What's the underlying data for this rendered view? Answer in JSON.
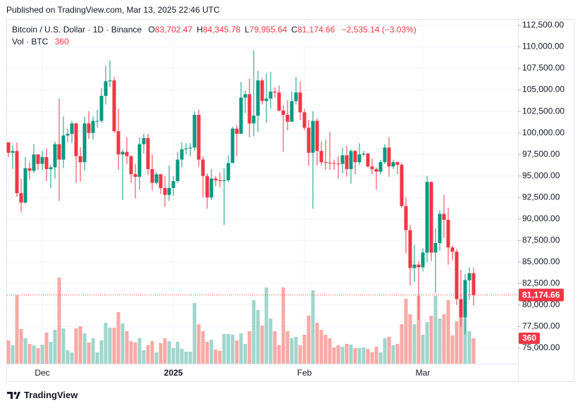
{
  "published": "Published on TradingView.com, Mar 13, 2025 22:46 UTC",
  "brand": "TradingView",
  "header": {
    "symbol": "Bitcoin / U.S. Dollar · 1D · Binance",
    "ohlc": [
      {
        "key": "O",
        "value": "83,702.47"
      },
      {
        "key": "H",
        "value": "84,345.78"
      },
      {
        "key": "L",
        "value": "79,955.64"
      },
      {
        "key": "C",
        "value": "81,174.66"
      }
    ],
    "change": "−2,535.14 (−3.03%)",
    "volume_title": "Vol · BTC",
    "volume_value": "360"
  },
  "chart_data": {
    "type": "candlestick",
    "up_color": "#089981",
    "down_color": "#f23645",
    "volume_up_color": "#9fd6cc",
    "volume_down_color": "#f8a9a6",
    "grid": true,
    "last_price_label": "81,174.66",
    "last_volume_label": "360",
    "categories": [
      null,
      null,
      null,
      null,
      null,
      null,
      null,
      null,
      "Dec",
      null,
      null,
      null,
      null,
      null,
      null,
      null,
      null,
      null,
      null,
      null,
      null,
      null,
      null,
      null,
      null,
      null,
      null,
      null,
      null,
      null,
      null,
      null,
      null,
      null,
      null,
      null,
      null,
      null,
      null,
      "2025",
      null,
      null,
      null,
      null,
      null,
      null,
      null,
      null,
      null,
      null,
      null,
      null,
      null,
      null,
      null,
      null,
      null,
      null,
      null,
      null,
      null,
      null,
      null,
      null,
      null,
      null,
      null,
      null,
      null,
      null,
      "Feb",
      null,
      null,
      null,
      null,
      null,
      null,
      null,
      null,
      null,
      null,
      null,
      null,
      null,
      null,
      null,
      null,
      null,
      null,
      null,
      null,
      null,
      null,
      null,
      null,
      null,
      null,
      null,
      "Mar",
      null,
      null,
      null,
      null,
      null,
      null,
      null,
      null,
      null,
      null,
      null,
      null
    ],
    "open": [
      98900,
      97700,
      97900,
      93000,
      91900,
      95900,
      95600,
      97500,
      96400,
      97200,
      95800,
      96000,
      98700,
      96900,
      99700,
      99900,
      101100,
      97300,
      96600,
      101100,
      100000,
      101400,
      101400,
      104300,
      106000,
      106100,
      100200,
      97500,
      97800,
      97300,
      95200,
      94900,
      98700,
      99400,
      95800,
      94200,
      95200,
      93600,
      92800,
      93600,
      94400,
      96900,
      98100,
      98200,
      98300,
      102100,
      96900,
      95000,
      92500,
      94700,
      94500,
      94400,
      94500,
      96500,
      100500,
      99900,
      104100,
      104500,
      101100,
      102000,
      106100,
      103700,
      104000,
      104800,
      104700,
      102600,
      102100,
      101300,
      103700,
      104700,
      102400,
      100600,
      97700,
      101400,
      97900,
      96600,
      96550,
      96500,
      96450,
      96400,
      97400,
      95800,
      97900,
      96600,
      97500,
      97600,
      96100,
      95800,
      95500,
      96600,
      98300,
      96100,
      96600,
      96300,
      91500,
      88700,
      84300,
      84700,
      84400,
      86100,
      94300,
      86100,
      87200,
      90600,
      89900,
      86700,
      86200,
      80700,
      78600,
      82900,
      83702.47
    ],
    "high": [
      98900,
      98600,
      98900,
      94700,
      97200,
      96600,
      98700,
      97500,
      97900,
      98200,
      96300,
      99000,
      104000,
      101900,
      100500,
      101400,
      101200,
      98300,
      101900,
      102500,
      101900,
      102700,
      105200,
      107800,
      108400,
      106500,
      102800,
      98100,
      99500,
      97400,
      96400,
      99500,
      99900,
      99900,
      97500,
      95500,
      95200,
      95000,
      96200,
      95000,
      97800,
      98900,
      98800,
      98800,
      102500,
      102700,
      97300,
      95300,
      95800,
      95000,
      95400,
      95900,
      97400,
      100700,
      100900,
      105900,
      104900,
      106300,
      109600,
      107200,
      106400,
      106900,
      107100,
      105300,
      105500,
      103200,
      103800,
      104800,
      106500,
      106000,
      102800,
      101500,
      102500,
      101700,
      99000,
      99200,
      100100,
      96900,
      97300,
      98300,
      98500,
      98100,
      98000,
      98800,
      97900,
      97700,
      97000,
      96000,
      96900,
      98700,
      99500,
      96900,
      96700,
      96500,
      92500,
      89300,
      87000,
      85100,
      86600,
      95000,
      94400,
      88900,
      91000,
      92800,
      91300,
      86900,
      86500,
      84100,
      83600,
      84400,
      84345.78
    ],
    "low": [
      97200,
      95800,
      92600,
      90800,
      91800,
      94600,
      95300,
      95700,
      95700,
      94400,
      93600,
      94700,
      92100,
      95900,
      98900,
      98800,
      94200,
      94300,
      95600,
      99300,
      99200,
      100600,
      101200,
      103300,
      105300,
      100000,
      95700,
      92200,
      96400,
      94200,
      92400,
      93400,
      97600,
      95100,
      93300,
      94000,
      92900,
      91400,
      92100,
      92700,
      94200,
      96000,
      97500,
      97300,
      97900,
      96100,
      92500,
      91200,
      92200,
      93800,
      93700,
      89300,
      94300,
      96500,
      97300,
      99900,
      102300,
      99500,
      99600,
      100100,
      103300,
      101200,
      102800,
      104100,
      102500,
      97800,
      100300,
      101300,
      103300,
      101500,
      100300,
      96200,
      91200,
      96200,
      96200,
      95700,
      95700,
      95700,
      94700,
      95300,
      94900,
      94100,
      95200,
      96300,
      97300,
      96000,
      95200,
      93400,
      95200,
      96400,
      94900,
      95800,
      95200,
      91300,
      86000,
      82300,
      82700,
      78300,
      83900,
      85000,
      85100,
      81400,
      86300,
      87800,
      84700,
      85200,
      80000,
      77500,
      76600,
      80600,
      79955.64
    ],
    "close": [
      97700,
      97900,
      93000,
      91900,
      95900,
      95600,
      97500,
      96400,
      97200,
      95800,
      96000,
      98700,
      96900,
      99700,
      99900,
      101100,
      97300,
      96600,
      101100,
      100000,
      101400,
      101400,
      104300,
      106000,
      106100,
      100200,
      97500,
      97800,
      97300,
      95200,
      94900,
      98700,
      99400,
      95800,
      94200,
      95200,
      93600,
      92800,
      93600,
      94400,
      96900,
      98100,
      98200,
      98300,
      102100,
      96900,
      95000,
      92500,
      94700,
      94500,
      94400,
      94500,
      96500,
      100500,
      99900,
      104100,
      104500,
      101100,
      102000,
      106100,
      103700,
      104000,
      104800,
      104700,
      102600,
      102100,
      101300,
      103700,
      104700,
      102400,
      100600,
      97700,
      101400,
      97900,
      96600,
      96550,
      96500,
      96450,
      96400,
      97400,
      95800,
      97900,
      96600,
      97500,
      97600,
      96100,
      95800,
      95500,
      96600,
      98300,
      96100,
      96600,
      96300,
      91500,
      88700,
      84300,
      84700,
      84400,
      86100,
      94300,
      86100,
      87200,
      90600,
      89900,
      86700,
      86200,
      80700,
      78600,
      82900,
      83700,
      81174.66
    ],
    "volume": [
      330,
      260,
      970,
      490,
      360,
      280,
      260,
      220,
      270,
      440,
      310,
      480,
      1220,
      500,
      190,
      160,
      500,
      530,
      430,
      300,
      360,
      160,
      330,
      580,
      510,
      510,
      730,
      570,
      460,
      320,
      300,
      360,
      190,
      260,
      320,
      160,
      290,
      360,
      320,
      220,
      310,
      210,
      170,
      170,
      860,
      560,
      460,
      310,
      340,
      200,
      180,
      420,
      420,
      410,
      330,
      430,
      280,
      460,
      900,
      760,
      540,
      1080,
      640,
      460,
      260,
      1080,
      460,
      360,
      380,
      260,
      410,
      680,
      1040,
      580,
      480,
      410,
      360,
      230,
      260,
      240,
      280,
      270,
      220,
      220,
      230,
      210,
      160,
      240,
      160,
      360,
      380,
      260,
      280,
      560,
      920,
      700,
      560,
      960,
      410,
      590,
      680,
      960,
      640,
      700,
      900,
      400,
      600,
      880,
      860,
      460,
      360
    ],
    "ylim": [
      73200,
      113150
    ],
    "yticks": [
      {
        "value": 75000,
        "label": "75,000.00"
      },
      {
        "value": 77500,
        "label": "77,500.00"
      },
      {
        "value": 80000,
        "label": "80,000.00"
      },
      {
        "value": 82500,
        "label": "82,500.00"
      },
      {
        "value": 85000,
        "label": "85,000.00"
      },
      {
        "value": 87500,
        "label": "87,500.00"
      },
      {
        "value": 90000,
        "label": "90,000.00"
      },
      {
        "value": 92500,
        "label": "92,500.00"
      },
      {
        "value": 95000,
        "label": "95,000.00"
      },
      {
        "value": 97500,
        "label": "97,500.00"
      },
      {
        "value": 100000,
        "label": "100,000.00"
      },
      {
        "value": 102500,
        "label": "102,500.00"
      },
      {
        "value": 105000,
        "label": "105,000.00"
      },
      {
        "value": 107500,
        "label": "107,500.00"
      },
      {
        "value": 110000,
        "label": "110,000.00"
      },
      {
        "value": 112500,
        "label": "112,500.00"
      }
    ]
  }
}
